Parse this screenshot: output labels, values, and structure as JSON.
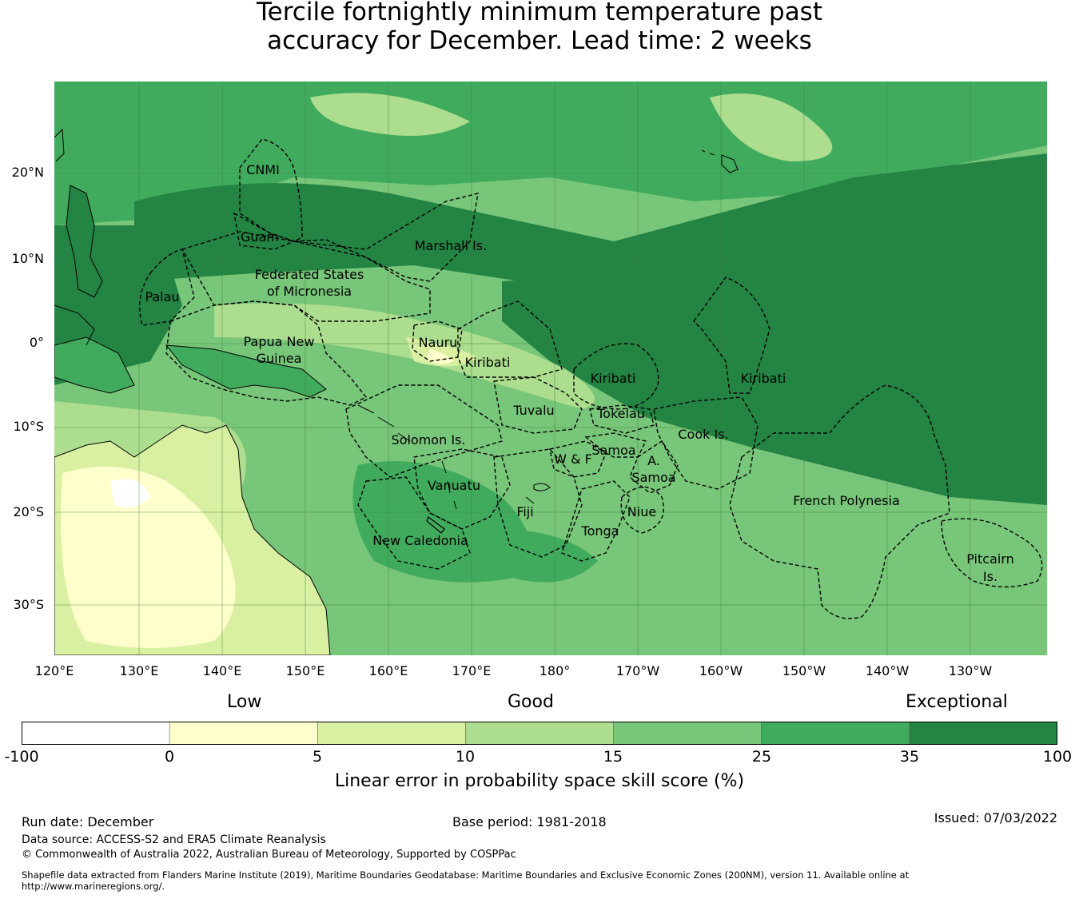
{
  "title_line1": "Tercile fortnightly minimum temperature past",
  "title_line2": "accuracy for December. Lead time: 2 weeks",
  "lat_labels": [
    "20°N",
    "10°N",
    "0°",
    "10°S",
    "20°S",
    "30°S"
  ],
  "lon_labels": [
    "120°E",
    "130°E",
    "140°E",
    "150°E",
    "160°E",
    "170°E",
    "180°",
    "170°W",
    "160°W",
    "150°W",
    "140°W",
    "130°W"
  ],
  "regions": {
    "cnmi": "CNMI",
    "guam": "Guam",
    "marshall": "Marshall Is.",
    "fsm1": "Federated States",
    "fsm2": "of Micronesia",
    "palau": "Palau",
    "png1": "Papua New",
    "png2": "Guinea",
    "nauru": "Nauru",
    "kiribati_w": "Kiribati",
    "kiribati_c": "Kiribati",
    "kiribati_e": "Kiribati",
    "tuvalu": "Tuvalu",
    "tokelau": "Tokelau",
    "solomon": "Solomon Is.",
    "wf": "W & F",
    "samoa": "Samoa",
    "asamoa1": "A.",
    "asamoa2": "Samoa",
    "cook": "Cook Is.",
    "vanuatu": "Vanuatu",
    "fiji": "Fiji",
    "niue": "Niue",
    "tonga": "Tonga",
    "frenchpoly": "French Polynesia",
    "newcal": "New Caledonia",
    "pitcairn1": "Pitcairn",
    "pitcairn2": "Is."
  },
  "legend": {
    "category_labels": [
      "Low",
      "Good",
      "Exceptional"
    ],
    "ticks": [
      "-100",
      "0",
      "5",
      "10",
      "15",
      "25",
      "35",
      "100"
    ],
    "colors": [
      "#ffffff",
      "#ffffcc",
      "#d9f0a3",
      "#addd8e",
      "#78c679",
      "#41ab5d",
      "#238443"
    ],
    "title": "Linear error in probability space skill score (%)"
  },
  "footer": {
    "run_date": "Run date: December",
    "base_period": "Base period: 1981-2018",
    "issued": "Issued: 07/03/2022",
    "data_source": "Data source: ACCESS-S2 and ERA5 Climate Reanalysis",
    "copyright": "© Commonwealth of Australia 2022, Australian Bureau of Meteorology, Supported by COSPPac",
    "shapefile_line1": "Shapefile data extracted from Flanders Marine Institute (2019), Maritime Boundaries Geodatabase: Maritime Boundaries and Exclusive Economic Zones (200NM), version 11. Available online at",
    "shapefile_line2": "http://www.marineregions.org/."
  }
}
